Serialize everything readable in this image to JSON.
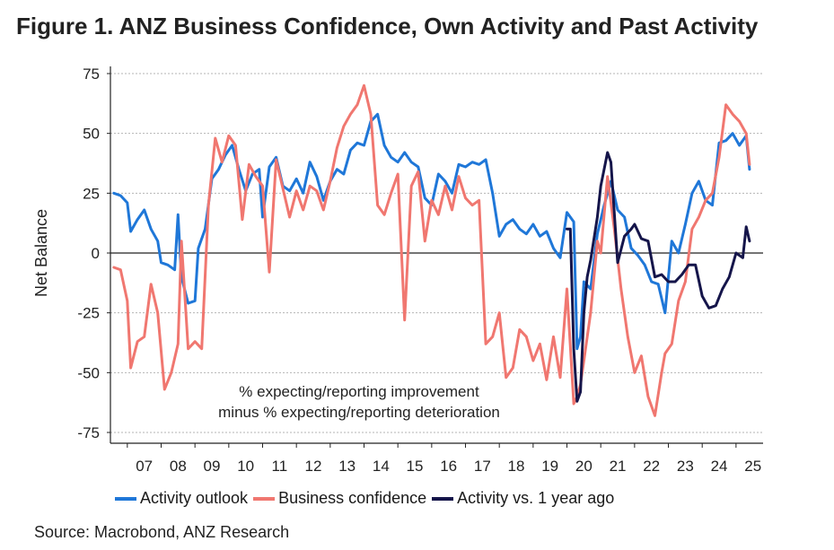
{
  "chart_data": {
    "type": "line",
    "title": "Figure 1.  ANZ Business Confidence, Own Activity and Past Activity",
    "ylabel": "Net Balance",
    "xlabel": "",
    "ylim": [
      -75,
      75
    ],
    "xlim": [
      2006.5,
      2025.8
    ],
    "yticks": [
      75,
      50,
      25,
      0,
      -25,
      -50,
      -75
    ],
    "xtick_labels": [
      "07",
      "08",
      "09",
      "10",
      "11",
      "12",
      "13",
      "14",
      "15",
      "16",
      "17",
      "18",
      "19",
      "20",
      "21",
      "22",
      "23",
      "24",
      "25"
    ],
    "annotation": [
      "% expecting/reporting improvement",
      "minus % expecting/reporting deterioration"
    ],
    "source": "Source: Macrobond, ANZ Research",
    "series": [
      {
        "name": "Activity outlook",
        "color": "#1f77d8",
        "x": [
          2006.6,
          2006.8,
          2007.0,
          2007.1,
          2007.3,
          2007.5,
          2007.7,
          2007.9,
          2008.0,
          2008.2,
          2008.4,
          2008.5,
          2008.6,
          2008.8,
          2009.0,
          2009.1,
          2009.3,
          2009.5,
          2009.7,
          2009.9,
          2010.1,
          2010.3,
          2010.5,
          2010.7,
          2010.9,
          2011.0,
          2011.2,
          2011.4,
          2011.6,
          2011.8,
          2012.0,
          2012.2,
          2012.4,
          2012.6,
          2012.8,
          2013.0,
          2013.2,
          2013.4,
          2013.6,
          2013.8,
          2014.0,
          2014.2,
          2014.4,
          2014.6,
          2014.8,
          2015.0,
          2015.2,
          2015.4,
          2015.6,
          2015.8,
          2016.0,
          2016.2,
          2016.4,
          2016.6,
          2016.8,
          2017.0,
          2017.2,
          2017.4,
          2017.6,
          2017.8,
          2018.0,
          2018.2,
          2018.4,
          2018.6,
          2018.8,
          2019.0,
          2019.2,
          2019.4,
          2019.6,
          2019.8,
          2020.0,
          2020.2,
          2020.3,
          2020.4,
          2020.5,
          2020.7,
          2020.9,
          2021.1,
          2021.3,
          2021.5,
          2021.7,
          2021.9,
          2022.1,
          2022.3,
          2022.5,
          2022.7,
          2022.9,
          2023.1,
          2023.3,
          2023.5,
          2023.7,
          2023.9,
          2024.1,
          2024.3,
          2024.5,
          2024.7,
          2024.9,
          2025.1,
          2025.3,
          2025.4
        ],
        "values": [
          25,
          24,
          21,
          9,
          14,
          18,
          10,
          5,
          -4,
          -5,
          -7,
          16,
          -10,
          -21,
          -20,
          2,
          10,
          31,
          35,
          41,
          45,
          35,
          26,
          33,
          35,
          15,
          36,
          40,
          28,
          26,
          31,
          25,
          38,
          32,
          22,
          30,
          35,
          33,
          43,
          46,
          45,
          55,
          58,
          45,
          40,
          38,
          42,
          38,
          36,
          23,
          20,
          33,
          30,
          25,
          37,
          36,
          38,
          37,
          39,
          25,
          7,
          12,
          14,
          10,
          8,
          12,
          7,
          9,
          2,
          -2,
          17,
          13,
          -40,
          -35,
          -12,
          -15,
          8,
          20,
          30,
          18,
          15,
          2,
          -1,
          -5,
          -12,
          -13,
          -25,
          5,
          0,
          12,
          25,
          30,
          22,
          20,
          46,
          47,
          50,
          45,
          49,
          35
        ]
      },
      {
        "name": "Business confidence",
        "color": "#f07770",
        "x": [
          2006.6,
          2006.8,
          2007.0,
          2007.1,
          2007.3,
          2007.5,
          2007.7,
          2007.9,
          2008.1,
          2008.3,
          2008.5,
          2008.6,
          2008.8,
          2009.0,
          2009.2,
          2009.4,
          2009.6,
          2009.8,
          2010.0,
          2010.2,
          2010.4,
          2010.6,
          2010.8,
          2011.0,
          2011.2,
          2011.4,
          2011.6,
          2011.8,
          2012.0,
          2012.2,
          2012.4,
          2012.6,
          2012.8,
          2013.0,
          2013.2,
          2013.4,
          2013.6,
          2013.8,
          2014.0,
          2014.2,
          2014.4,
          2014.6,
          2014.8,
          2015.0,
          2015.2,
          2015.4,
          2015.6,
          2015.8,
          2016.0,
          2016.2,
          2016.4,
          2016.6,
          2016.8,
          2017.0,
          2017.2,
          2017.4,
          2017.6,
          2017.8,
          2018.0,
          2018.2,
          2018.4,
          2018.6,
          2018.8,
          2019.0,
          2019.2,
          2019.4,
          2019.6,
          2019.8,
          2020.0,
          2020.2,
          2020.3,
          2020.4,
          2020.5,
          2020.7,
          2020.9,
          2021.0,
          2021.2,
          2021.4,
          2021.6,
          2021.8,
          2022.0,
          2022.2,
          2022.4,
          2022.6,
          2022.8,
          2022.9,
          2023.1,
          2023.3,
          2023.5,
          2023.7,
          2023.9,
          2024.1,
          2024.3,
          2024.5,
          2024.7,
          2024.9,
          2025.1,
          2025.3,
          2025.4
        ],
        "values": [
          -6,
          -7,
          -20,
          -48,
          -37,
          -35,
          -13,
          -25,
          -57,
          -50,
          -38,
          5,
          -40,
          -37,
          -40,
          20,
          48,
          38,
          49,
          45,
          14,
          37,
          32,
          28,
          -8,
          39,
          27,
          15,
          26,
          18,
          28,
          26,
          18,
          30,
          44,
          53,
          58,
          62,
          70,
          58,
          20,
          16,
          25,
          33,
          -28,
          28,
          34,
          5,
          22,
          16,
          28,
          18,
          32,
          23,
          20,
          22,
          -38,
          -35,
          -25,
          -52,
          -48,
          -32,
          -35,
          -45,
          -38,
          -53,
          -35,
          -52,
          -15,
          -63,
          -60,
          -55,
          -45,
          -25,
          5,
          0,
          32,
          10,
          -15,
          -35,
          -50,
          -43,
          -60,
          -68,
          -50,
          -42,
          -38,
          -20,
          -12,
          10,
          15,
          22,
          25,
          40,
          62,
          58,
          55,
          50,
          37
        ]
      },
      {
        "name": "Activity vs. 1 year ago",
        "color": "#15154a",
        "x": [
          2020.0,
          2020.1,
          2020.2,
          2020.3,
          2020.4,
          2020.5,
          2020.6,
          2020.7,
          2020.9,
          2021.0,
          2021.2,
          2021.3,
          2021.5,
          2021.7,
          2021.9,
          2022.0,
          2022.2,
          2022.4,
          2022.6,
          2022.8,
          2023.0,
          2023.2,
          2023.4,
          2023.6,
          2023.8,
          2024.0,
          2024.2,
          2024.4,
          2024.6,
          2024.8,
          2025.0,
          2025.2,
          2025.3,
          2025.4
        ],
        "values": [
          10,
          10,
          -40,
          -62,
          -58,
          -25,
          -10,
          -3,
          15,
          28,
          42,
          38,
          -4,
          7,
          10,
          12,
          6,
          5,
          -10,
          -9,
          -12,
          -12,
          -9,
          -5,
          -5,
          -18,
          -23,
          -22,
          -15,
          -10,
          0,
          -2,
          11,
          5
        ]
      }
    ]
  }
}
